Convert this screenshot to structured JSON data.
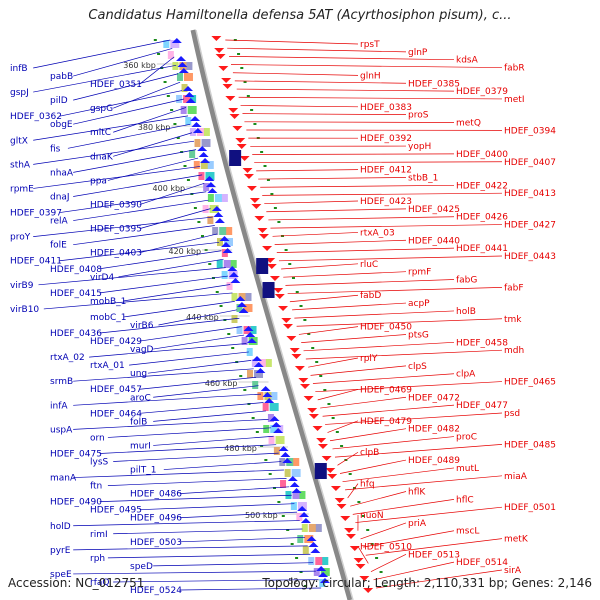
{
  "title": "Candidatus Hamiltonella defensa 5AT (Acyrthosiphon pisum), c...",
  "footer": {
    "accession": "Accession: NC_012751",
    "topology": "Topology: circular; Length: 2,110,331 bp; Genes: 2,146"
  },
  "scale_labels": [
    "360 kbp",
    "380 kbp",
    "400 kbp",
    "420 kbp",
    "440 kbp",
    "460 kbp",
    "480 kbp",
    "500 kbp",
    "52"
  ],
  "left_labels": [
    "infB",
    "pabB",
    "HDEF_0351",
    "gspJ",
    "pilD",
    "gspG",
    "HDEF_0362",
    "obgE",
    "mltC",
    "gltX",
    "fis",
    "dnaK",
    "sthA",
    "nhaA",
    "ppa",
    "rpmE",
    "dnaJ",
    "HDEF_0390",
    "HDEF_0397",
    "relA",
    "HDEF_0395",
    "proY",
    "folE",
    "HDEF_0403",
    "HDEF_0411",
    "HDEF_0408",
    "virD4",
    "virB9",
    "HDEF_0415",
    "mobB_1",
    "virB10",
    "mobC_1",
    "virB6",
    "HDEF_0436",
    "HDEF_0429",
    "vagD",
    "rtxA_02",
    "rtxA_01",
    "ung",
    "srmB",
    "HDEF_0457",
    "aroC",
    "infA",
    "HDEF_0464",
    "folB",
    "uspA",
    "orn",
    "murI",
    "HDEF_0475",
    "lysS",
    "pilT_1",
    "manA",
    "ftn",
    "HDEF_0486",
    "HDEF_0490",
    "HDEF_0495",
    "HDEF_0496",
    "holD",
    "rimI",
    "HDEF_0503",
    "pyrE",
    "rph",
    "speD",
    "speE",
    "rfaQ",
    "HDEF_0524"
  ],
  "right_labels": [
    "rpsT",
    "glnP",
    "kdsA",
    "fabR",
    "glnH",
    "HDEF_0385",
    "HDEF_0379",
    "metI",
    "HDEF_0383",
    "proS",
    "metQ",
    "HDEF_0394",
    "HDEF_0392",
    "yopH",
    "HDEF_0400",
    "HDEF_0407",
    "HDEF_0412",
    "stbB_1",
    "HDEF_0422",
    "HDEF_0413",
    "HDEF_0423",
    "HDEF_0425",
    "HDEF_0426",
    "HDEF_0427",
    "rtxA_03",
    "HDEF_0440",
    "HDEF_0441",
    "HDEF_0443",
    "rluC",
    "rpmF",
    "fabG",
    "fabF",
    "fabD",
    "acpP",
    "holB",
    "tmk",
    "HDEF_0450",
    "ptsG",
    "HDEF_0458",
    "mdh",
    "rplY",
    "clpS",
    "clpA",
    "HDEF_0465",
    "HDEF_0469",
    "HDEF_0472",
    "HDEF_0477",
    "psd",
    "HDEF_0479",
    "HDEF_0482",
    "proC",
    "HDEF_0485",
    "clpB",
    "HDEF_0489",
    "mutL",
    "miaA",
    "hfq",
    "hflK",
    "hflC",
    "HDEF_0501",
    "nuoN",
    "priA",
    "mscL",
    "metK",
    "HDEF_0510",
    "HDEF_0513",
    "HDEF_0514",
    "sirA"
  ],
  "colors": {
    "left_label": "#0000b3",
    "right_label": "#e60000",
    "backbone": "#888888",
    "forward_arrow": "#1a1aff",
    "reverse_arrow": "#ff1a1a",
    "tick_dot": "#1a8a1a"
  }
}
